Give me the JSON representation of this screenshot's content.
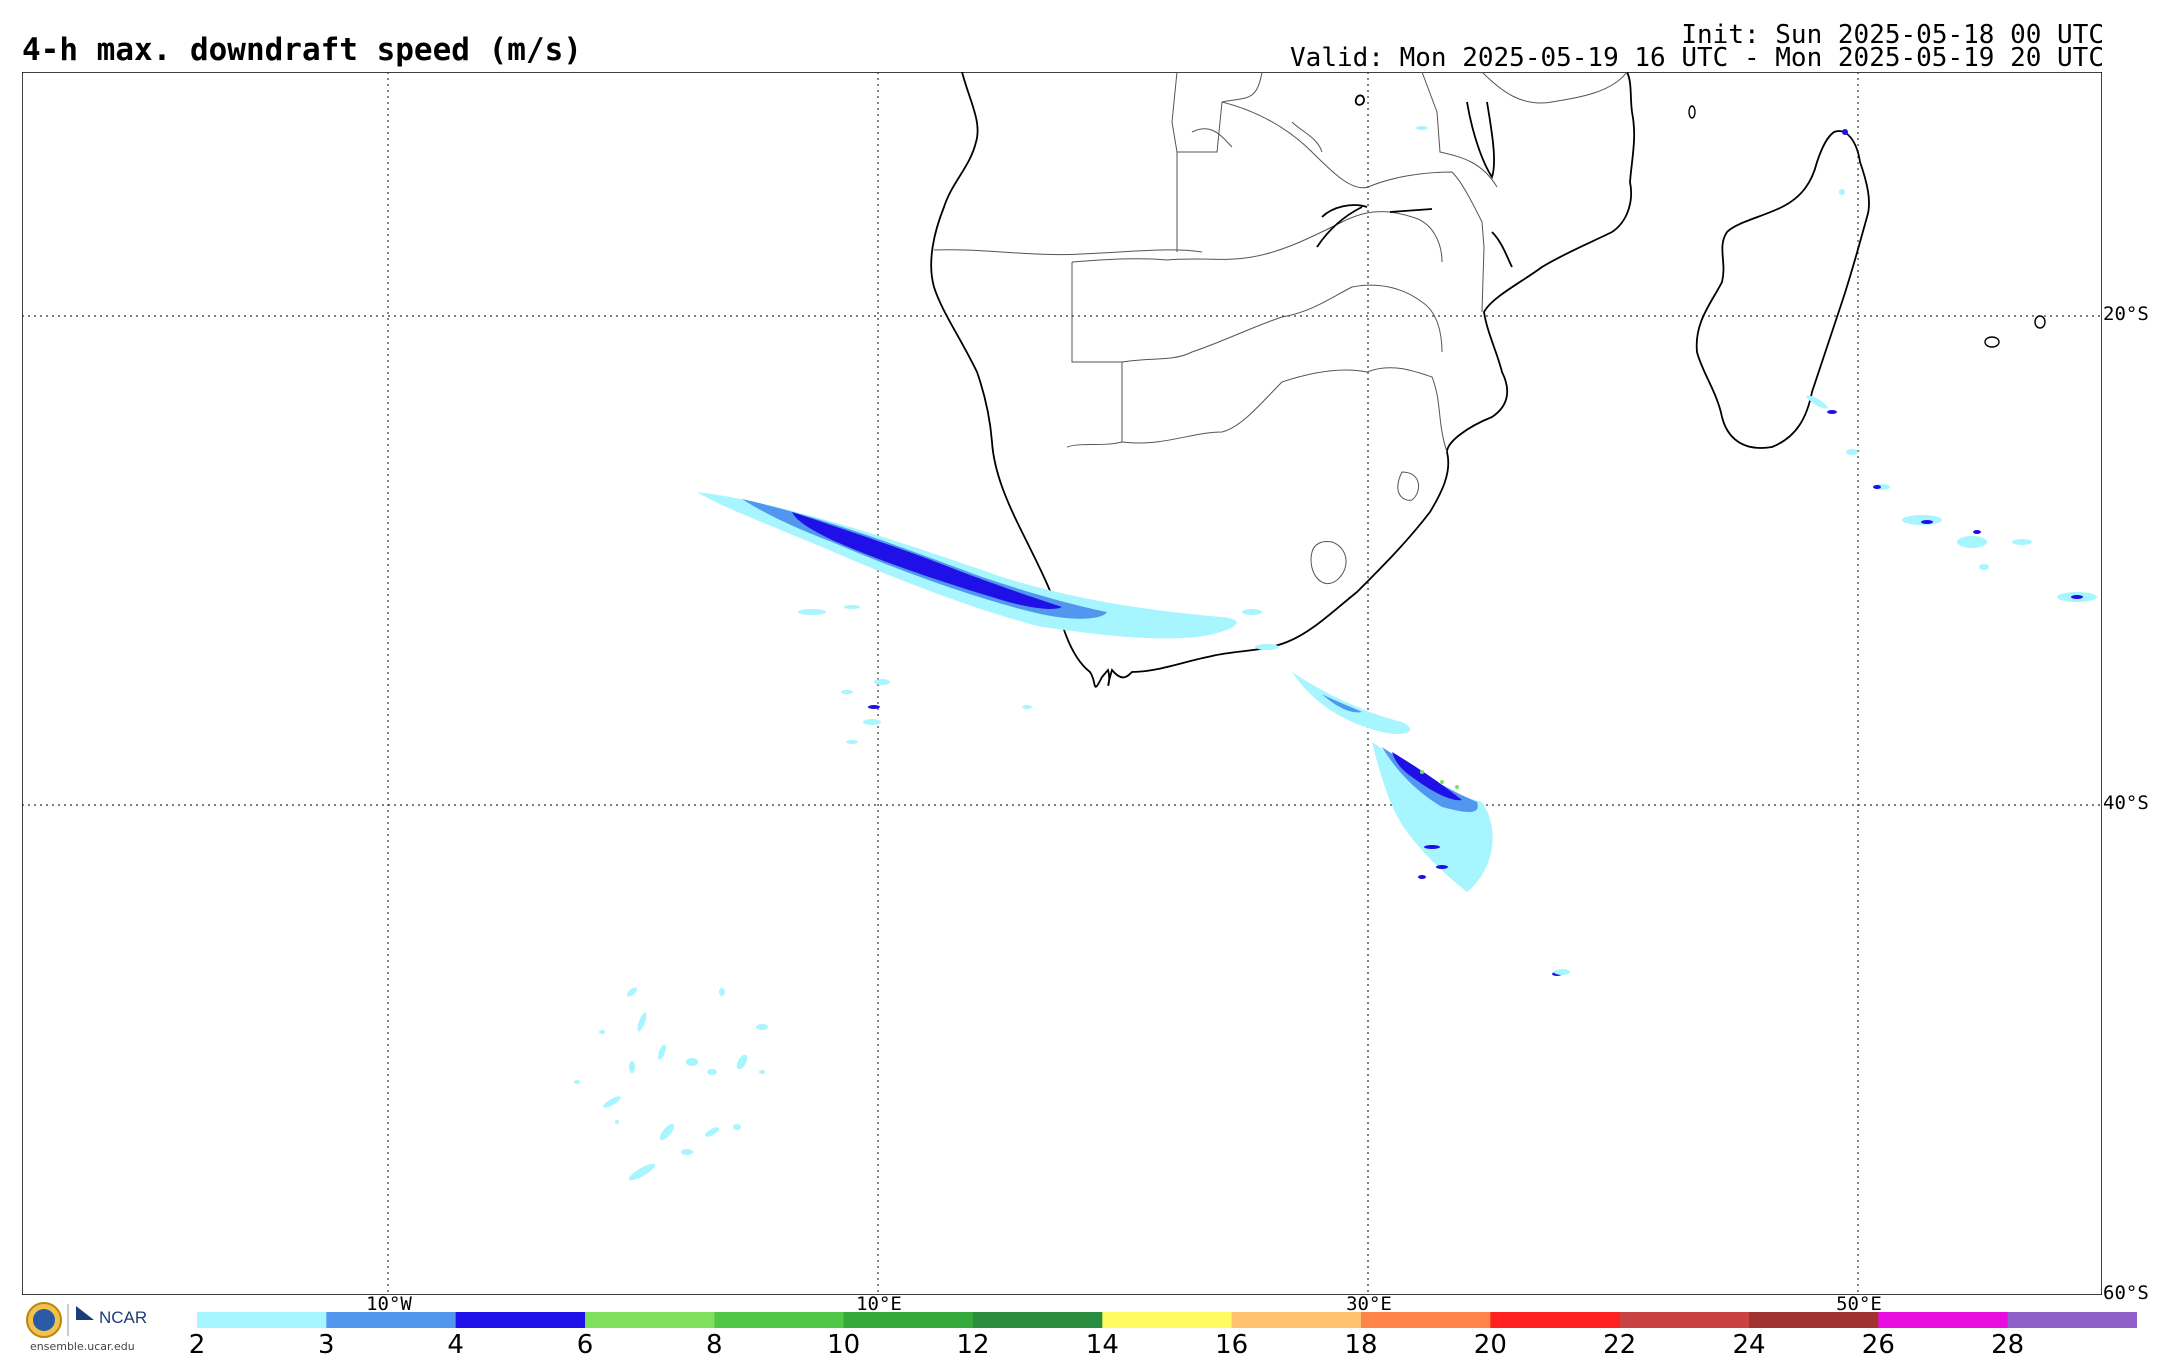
{
  "header": {
    "title": "4-h max. downdraft speed (m/s)",
    "init": "Init: Sun 2025-05-18 00 UTC",
    "valid": "Valid: Mon 2025-05-19 16 UTC - Mon 2025-05-19 20 UTC"
  },
  "grid": {
    "lat_labels": [
      "20°S",
      "40°S",
      "60°S"
    ],
    "lon_labels": [
      "10°W",
      "10°E",
      "30°E",
      "50°E"
    ]
  },
  "colorbar": {
    "ticks": [
      "2",
      "3",
      "4",
      "6",
      "8",
      "10",
      "12",
      "14",
      "16",
      "18",
      "20",
      "22",
      "24",
      "26",
      "28"
    ],
    "colors": [
      "#a6f5ff",
      "#5197ef",
      "#2010e8",
      "#7fdf5f",
      "#52c646",
      "#35aa3a",
      "#2a8c3f",
      "#fffa60",
      "#ffc36f",
      "#ff8448",
      "#ff2020",
      "#c94141",
      "#a23232",
      "#e80ce1",
      "#8f60c8"
    ]
  },
  "logo": {
    "org": "NCAR",
    "url": "ensemble.ucar.edu"
  }
}
